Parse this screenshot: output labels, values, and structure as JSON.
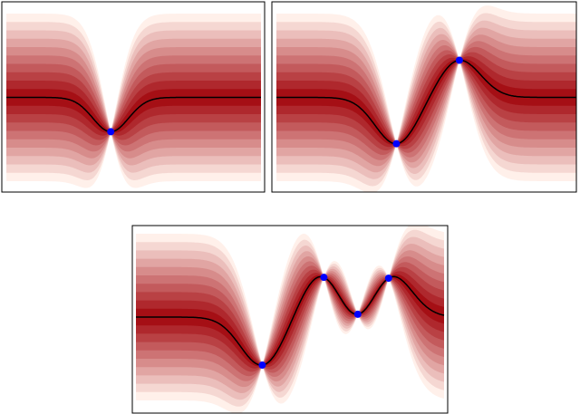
{
  "chart_data": [
    {
      "type": "scatter",
      "x": [
        0.41
      ],
      "values": [
        -1.23
      ],
      "color": "#0000ff",
      "line_color": "#000000",
      "band_color": "#a50f15",
      "xlim": [
        0,
        1
      ],
      "ylim": [
        -3,
        3
      ]
    },
    {
      "type": "scatter",
      "x": [
        0.4,
        0.61
      ],
      "values": [
        -1.66,
        1.33
      ],
      "color": "#0000ff",
      "line_color": "#000000",
      "band_color": "#a50f15",
      "xlim": [
        0,
        1
      ],
      "ylim": [
        -3,
        3
      ]
    },
    {
      "type": "scatter",
      "x": [
        0.41,
        0.61,
        0.72,
        0.82
      ],
      "values": [
        -1.73,
        1.43,
        0.1,
        1.4
      ],
      "color": "#0000ff",
      "line_color": "#000000",
      "band_color": "#a50f15",
      "xlim": [
        0,
        1
      ],
      "ylim": [
        -3,
        3
      ]
    }
  ]
}
